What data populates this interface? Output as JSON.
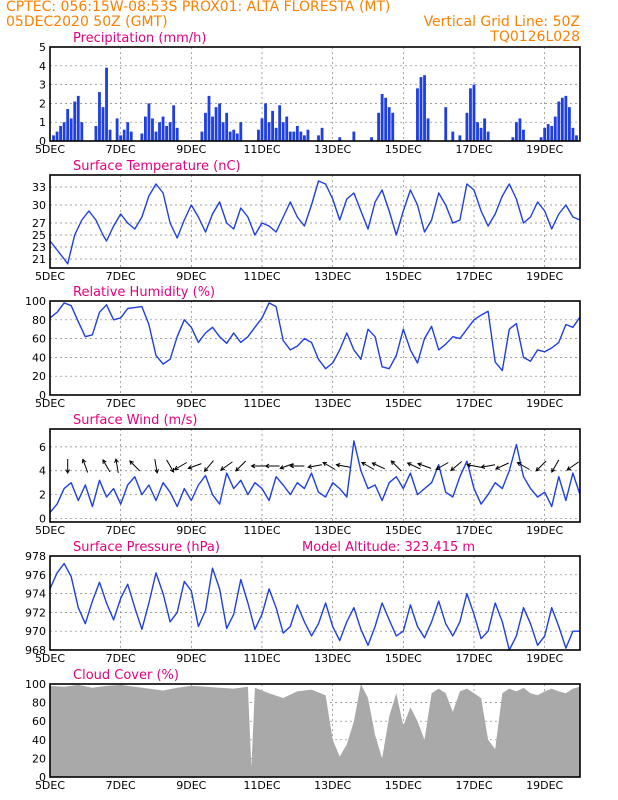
{
  "header": {
    "line1": "CPTEC:   056:15W-08:53S   PROX01: ALTA FLORESTA (MT)",
    "line2_left": "05DEC2020 50Z (GMT)",
    "line2_right": "Vertical Grid Line: 50Z",
    "line3_right": "TQ0126L028"
  },
  "colors": {
    "header": "#ff7f00",
    "panel_title": "#e6007e",
    "series": "#1f3fe0",
    "cloud_fill": "#a9a9a9",
    "wind_arrow": "#000000"
  },
  "chart_data": [
    {
      "type": "bar",
      "title": "Precipitation (mm/h)",
      "x_start_day": 5,
      "x_end_day": 20,
      "x_ticks": [
        "5DEC",
        "7DEC",
        "9DEC",
        "11DEC",
        "13DEC",
        "15DEC",
        "17DEC",
        "19DEC"
      ],
      "yticks": [
        "0",
        "1",
        "2",
        "3",
        "4",
        "5"
      ],
      "ylim": [
        0,
        5
      ],
      "grid": true,
      "x": [
        5.1,
        5.2,
        5.3,
        5.4,
        5.5,
        5.6,
        5.7,
        5.8,
        5.9,
        6.3,
        6.4,
        6.5,
        6.6,
        6.7,
        6.9,
        7.0,
        7.1,
        7.2,
        7.3,
        7.6,
        7.7,
        7.8,
        7.9,
        8.0,
        8.1,
        8.2,
        8.3,
        8.4,
        8.5,
        8.6,
        9.3,
        9.4,
        9.5,
        9.6,
        9.7,
        9.8,
        9.9,
        10.0,
        10.1,
        10.2,
        10.3,
        10.4,
        10.9,
        11.0,
        11.1,
        11.2,
        11.3,
        11.4,
        11.5,
        11.6,
        11.7,
        11.8,
        11.9,
        12.0,
        12.1,
        12.2,
        12.3,
        12.6,
        12.7,
        13.2,
        13.6,
        14.1,
        14.3,
        14.4,
        14.5,
        14.6,
        14.7,
        15.4,
        15.5,
        15.6,
        15.7,
        16.2,
        16.4,
        16.6,
        16.8,
        16.9,
        17.0,
        17.1,
        17.2,
        17.3,
        17.4,
        18.1,
        18.2,
        18.3,
        18.4,
        18.9,
        19.0,
        19.1,
        19.2,
        19.3,
        19.4,
        19.5,
        19.6,
        19.7,
        19.8,
        19.9
      ],
      "values": [
        0.3,
        0.5,
        0.8,
        1.0,
        1.7,
        1.2,
        2.1,
        2.4,
        1.0,
        0.8,
        2.6,
        1.8,
        3.9,
        0.6,
        1.2,
        0.3,
        0.6,
        1.0,
        0.5,
        0.4,
        1.3,
        2.0,
        1.2,
        0.5,
        1.0,
        1.3,
        0.8,
        1.0,
        1.9,
        0.7,
        0.5,
        1.5,
        2.4,
        1.3,
        1.8,
        2.0,
        1.0,
        1.5,
        0.5,
        0.6,
        0.4,
        1.0,
        0.6,
        1.2,
        2.0,
        1.0,
        1.6,
        0.7,
        1.9,
        1.0,
        1.3,
        0.5,
        0.5,
        0.8,
        0.5,
        0.3,
        0.6,
        0.3,
        0.7,
        0.2,
        0.5,
        0.2,
        1.5,
        2.5,
        2.3,
        1.8,
        1.5,
        2.8,
        3.4,
        3.5,
        1.2,
        1.8,
        0.5,
        0.3,
        1.5,
        2.8,
        3.0,
        1.0,
        0.7,
        1.2,
        0.5,
        0.2,
        1.0,
        1.2,
        0.6,
        0.2,
        0.7,
        0.9,
        0.8,
        1.3,
        2.1,
        2.3,
        2.4,
        1.8,
        0.7,
        0.3
      ]
    },
    {
      "type": "line",
      "title": "Surface Temperature (nC)",
      "x_start_day": 5,
      "x_end_day": 20,
      "x_ticks": [
        "5DEC",
        "7DEC",
        "9DEC",
        "11DEC",
        "13DEC",
        "15DEC",
        "17DEC",
        "19DEC"
      ],
      "yticks": [
        "21",
        "23",
        "25",
        "27",
        "30",
        "33"
      ],
      "ylim": [
        19.5,
        35
      ],
      "grid": true,
      "x": [
        5.0,
        5.2,
        5.4,
        5.5,
        5.7,
        5.9,
        6.1,
        6.3,
        6.5,
        6.6,
        6.8,
        7.0,
        7.2,
        7.4,
        7.6,
        7.8,
        8.0,
        8.2,
        8.4,
        8.6,
        8.8,
        9.0,
        9.2,
        9.4,
        9.6,
        9.8,
        10.0,
        10.2,
        10.4,
        10.6,
        10.8,
        11.0,
        11.2,
        11.4,
        11.6,
        11.8,
        12.0,
        12.2,
        12.4,
        12.6,
        12.8,
        13.0,
        13.2,
        13.4,
        13.6,
        13.8,
        14.0,
        14.2,
        14.4,
        14.6,
        14.8,
        15.0,
        15.2,
        15.4,
        15.6,
        15.8,
        16.0,
        16.2,
        16.4,
        16.6,
        16.8,
        17.0,
        17.2,
        17.4,
        17.6,
        17.8,
        18.0,
        18.2,
        18.4,
        18.6,
        18.8,
        19.0,
        19.2,
        19.4,
        19.6,
        19.8,
        20.0
      ],
      "values": [
        24.0,
        22.5,
        21.0,
        20.2,
        25.0,
        27.5,
        29.0,
        27.5,
        25.0,
        24.0,
        26.5,
        28.5,
        27.0,
        26.0,
        28.0,
        31.5,
        33.5,
        32.0,
        27.0,
        24.5,
        27.5,
        30.0,
        28.0,
        25.5,
        28.5,
        30.5,
        27.0,
        26.0,
        29.5,
        28.0,
        25.0,
        27.0,
        26.5,
        25.5,
        28.0,
        30.5,
        28.0,
        26.5,
        30.0,
        34.0,
        33.5,
        31.0,
        27.5,
        31.0,
        32.0,
        29.0,
        26.0,
        30.5,
        32.5,
        29.0,
        25.0,
        29.0,
        32.5,
        30.0,
        25.5,
        27.5,
        32.0,
        30.0,
        27.0,
        27.5,
        33.5,
        32.5,
        29.0,
        26.5,
        28.5,
        31.5,
        33.5,
        31.0,
        27.0,
        28.0,
        30.5,
        29.0,
        26.0,
        28.5,
        30.0,
        28.0,
        27.5
      ]
    },
    {
      "type": "line",
      "title": "Relative Humidity (%)",
      "x_start_day": 5,
      "x_end_day": 20,
      "x_ticks": [
        "5DEC",
        "7DEC",
        "9DEC",
        "11DEC",
        "13DEC",
        "15DEC",
        "17DEC",
        "19DEC"
      ],
      "yticks": [
        "0",
        "20",
        "40",
        "60",
        "80",
        "100"
      ],
      "ylim": [
        0,
        100
      ],
      "grid": true,
      "x": [
        5.0,
        5.2,
        5.4,
        5.6,
        5.8,
        6.0,
        6.2,
        6.4,
        6.6,
        6.8,
        7.0,
        7.2,
        7.4,
        7.6,
        7.8,
        8.0,
        8.2,
        8.4,
        8.6,
        8.8,
        9.0,
        9.2,
        9.4,
        9.6,
        9.8,
        10.0,
        10.2,
        10.4,
        10.6,
        10.8,
        11.0,
        11.2,
        11.4,
        11.6,
        11.8,
        12.0,
        12.2,
        12.4,
        12.6,
        12.8,
        13.0,
        13.2,
        13.4,
        13.6,
        13.8,
        14.0,
        14.2,
        14.4,
        14.6,
        14.8,
        15.0,
        15.2,
        15.4,
        15.6,
        15.8,
        16.0,
        16.2,
        16.4,
        16.6,
        16.8,
        17.0,
        17.2,
        17.4,
        17.6,
        17.8,
        18.0,
        18.2,
        18.4,
        18.6,
        18.8,
        19.0,
        19.2,
        19.4,
        19.6,
        19.8,
        20.0
      ],
      "values": [
        82,
        88,
        98,
        95,
        78,
        62,
        64,
        88,
        96,
        80,
        82,
        92,
        93,
        94,
        75,
        42,
        33,
        38,
        62,
        80,
        72,
        56,
        66,
        72,
        62,
        55,
        66,
        56,
        62,
        72,
        82,
        98,
        94,
        58,
        48,
        52,
        60,
        56,
        38,
        28,
        34,
        48,
        66,
        48,
        38,
        70,
        62,
        30,
        28,
        42,
        70,
        48,
        34,
        60,
        73,
        48,
        54,
        62,
        60,
        70,
        80,
        85,
        89,
        35,
        26,
        70,
        76,
        40,
        36,
        48,
        46,
        50,
        56,
        75,
        72,
        83
      ]
    },
    {
      "type": "line",
      "title": "Surface Wind (m/s)",
      "x_start_day": 5,
      "x_end_day": 20,
      "x_ticks": [
        "5DEC",
        "7DEC",
        "9DEC",
        "11DEC",
        "13DEC",
        "15DEC",
        "17DEC",
        "19DEC"
      ],
      "yticks": [
        "0",
        "2",
        "4",
        "6"
      ],
      "ylim": [
        -0.3,
        7.5
      ],
      "grid": true,
      "wind_arrows": true,
      "x": [
        5.0,
        5.2,
        5.4,
        5.6,
        5.8,
        6.0,
        6.2,
        6.4,
        6.6,
        6.8,
        7.0,
        7.2,
        7.4,
        7.6,
        7.8,
        8.0,
        8.2,
        8.4,
        8.6,
        8.8,
        9.0,
        9.2,
        9.4,
        9.6,
        9.8,
        10.0,
        10.2,
        10.4,
        10.6,
        10.8,
        11.0,
        11.2,
        11.4,
        11.6,
        11.8,
        12.0,
        12.2,
        12.4,
        12.6,
        12.8,
        13.0,
        13.2,
        13.4,
        13.6,
        13.8,
        14.0,
        14.2,
        14.4,
        14.6,
        14.8,
        15.0,
        15.2,
        15.4,
        15.6,
        15.8,
        16.0,
        16.2,
        16.4,
        16.6,
        16.8,
        17.0,
        17.2,
        17.4,
        17.6,
        17.8,
        18.0,
        18.2,
        18.4,
        18.6,
        18.8,
        19.0,
        19.2,
        19.4,
        19.6,
        19.8,
        20.0
      ],
      "values": [
        0.5,
        1.2,
        2.5,
        3.0,
        1.5,
        2.8,
        1.0,
        3.2,
        1.8,
        2.5,
        1.2,
        2.8,
        3.5,
        2.0,
        2.8,
        1.5,
        3.0,
        2.2,
        1.0,
        2.5,
        1.5,
        2.8,
        3.6,
        2.0,
        1.2,
        3.8,
        2.5,
        3.2,
        2.0,
        3.0,
        2.5,
        1.5,
        3.5,
        2.8,
        2.0,
        3.0,
        2.5,
        3.8,
        2.2,
        1.8,
        3.0,
        2.5,
        1.8,
        6.5,
        4.0,
        2.5,
        2.8,
        1.5,
        3.0,
        3.5,
        2.5,
        3.8,
        2.0,
        2.5,
        3.0,
        4.5,
        2.2,
        1.8,
        3.5,
        4.8,
        2.5,
        1.2,
        2.0,
        3.0,
        2.5,
        4.0,
        6.2,
        3.5,
        2.5,
        1.8,
        2.2,
        1.0,
        3.5,
        1.5,
        3.8,
        2.0
      ],
      "arrow_x": [
        5.5,
        6.0,
        6.6,
        6.9,
        7.4,
        8.0,
        8.4,
        8.7,
        9.1,
        9.5,
        10.0,
        10.4,
        10.9,
        11.3,
        11.7,
        12.0,
        12.5,
        12.9,
        13.3,
        14.0,
        14.3,
        14.8,
        15.3,
        15.6,
        16.1,
        16.5,
        17.0,
        17.4,
        17.8,
        18.4,
        18.9,
        19.3,
        19.8
      ],
      "arrow_dir_deg": [
        270,
        110,
        120,
        100,
        135,
        280,
        300,
        210,
        200,
        230,
        215,
        225,
        180,
        180,
        200,
        180,
        190,
        150,
        170,
        150,
        155,
        135,
        155,
        160,
        210,
        220,
        170,
        190,
        205,
        150,
        225,
        240,
        215
      ]
    },
    {
      "type": "line",
      "title": "Surface Pressure (hPa)",
      "annotation": "Model Altitude: 323.415  m",
      "x_start_day": 5,
      "x_end_day": 20,
      "x_ticks": [
        "5DEC",
        "7DEC",
        "9DEC",
        "11DEC",
        "13DEC",
        "15DEC",
        "17DEC",
        "19DEC"
      ],
      "yticks": [
        "968",
        "970",
        "972",
        "974",
        "976",
        "978"
      ],
      "ylim": [
        968,
        978
      ],
      "grid": true,
      "x": [
        5.0,
        5.2,
        5.4,
        5.6,
        5.8,
        6.0,
        6.2,
        6.4,
        6.6,
        6.8,
        7.0,
        7.2,
        7.4,
        7.6,
        7.8,
        8.0,
        8.2,
        8.4,
        8.6,
        8.8,
        9.0,
        9.2,
        9.4,
        9.6,
        9.8,
        10.0,
        10.2,
        10.4,
        10.6,
        10.8,
        11.0,
        11.2,
        11.4,
        11.6,
        11.8,
        12.0,
        12.2,
        12.4,
        12.6,
        12.8,
        13.0,
        13.2,
        13.4,
        13.6,
        13.8,
        14.0,
        14.2,
        14.4,
        14.6,
        14.8,
        15.0,
        15.2,
        15.4,
        15.6,
        15.8,
        16.0,
        16.2,
        16.4,
        16.6,
        16.8,
        17.0,
        17.2,
        17.4,
        17.6,
        17.8,
        18.0,
        18.2,
        18.4,
        18.6,
        18.8,
        19.0,
        19.2,
        19.4,
        19.6,
        19.8,
        20.0
      ],
      "values": [
        974.5,
        976.2,
        977.2,
        975.8,
        972.5,
        970.8,
        973.2,
        975.2,
        973.0,
        971.2,
        973.5,
        975.0,
        972.5,
        970.2,
        973.0,
        976.2,
        974.0,
        971.0,
        972.0,
        975.3,
        974.3,
        970.5,
        972.2,
        976.7,
        974.5,
        970.3,
        971.8,
        975.5,
        973.0,
        970.2,
        971.8,
        974.5,
        972.5,
        969.8,
        970.5,
        972.8,
        971.0,
        969.5,
        970.8,
        973.0,
        970.5,
        969.0,
        971.0,
        972.5,
        970.2,
        968.5,
        970.5,
        973.0,
        971.2,
        969.5,
        970.0,
        972.8,
        970.5,
        969.3,
        971.0,
        973.2,
        970.8,
        969.5,
        971.0,
        974.0,
        971.8,
        969.2,
        970.0,
        973.0,
        971.0,
        968.0,
        969.5,
        972.5,
        970.8,
        968.5,
        969.5,
        972.5,
        970.5,
        968.2,
        970.0,
        970.0
      ]
    },
    {
      "type": "area",
      "title": "Cloud Cover (%)",
      "x_start_day": 5,
      "x_end_day": 20,
      "x_ticks": [
        "5DEC",
        "7DEC",
        "9DEC",
        "11DEC",
        "13DEC",
        "15DEC",
        "17DEC",
        "19DEC"
      ],
      "yticks": [
        "0",
        "20",
        "40",
        "60",
        "80",
        "100"
      ],
      "ylim": [
        0,
        100
      ],
      "grid": true,
      "x": [
        5.0,
        5.4,
        5.8,
        6.2,
        6.6,
        7.0,
        7.4,
        7.8,
        8.2,
        8.6,
        9.0,
        9.4,
        9.8,
        10.2,
        10.6,
        10.7,
        10.8,
        11.2,
        11.6,
        12.0,
        12.4,
        12.8,
        13.0,
        13.2,
        13.4,
        13.6,
        13.8,
        14.0,
        14.2,
        14.4,
        14.6,
        14.8,
        15.0,
        15.2,
        15.4,
        15.6,
        15.8,
        16.0,
        16.2,
        16.4,
        16.6,
        16.8,
        17.0,
        17.2,
        17.4,
        17.6,
        17.8,
        18.0,
        18.2,
        18.4,
        18.6,
        18.8,
        19.0,
        19.2,
        19.4,
        19.6,
        19.8,
        20.0
      ],
      "values": [
        98,
        97,
        99,
        96,
        98,
        99,
        97,
        95,
        93,
        96,
        98,
        97,
        96,
        95,
        97,
        10,
        96,
        90,
        85,
        92,
        94,
        88,
        40,
        22,
        35,
        60,
        100,
        85,
        45,
        20,
        65,
        90,
        55,
        75,
        60,
        40,
        90,
        95,
        90,
        70,
        92,
        95,
        90,
        85,
        40,
        30,
        90,
        95,
        92,
        96,
        90,
        88,
        92,
        95,
        92,
        90,
        95,
        97
      ]
    }
  ]
}
